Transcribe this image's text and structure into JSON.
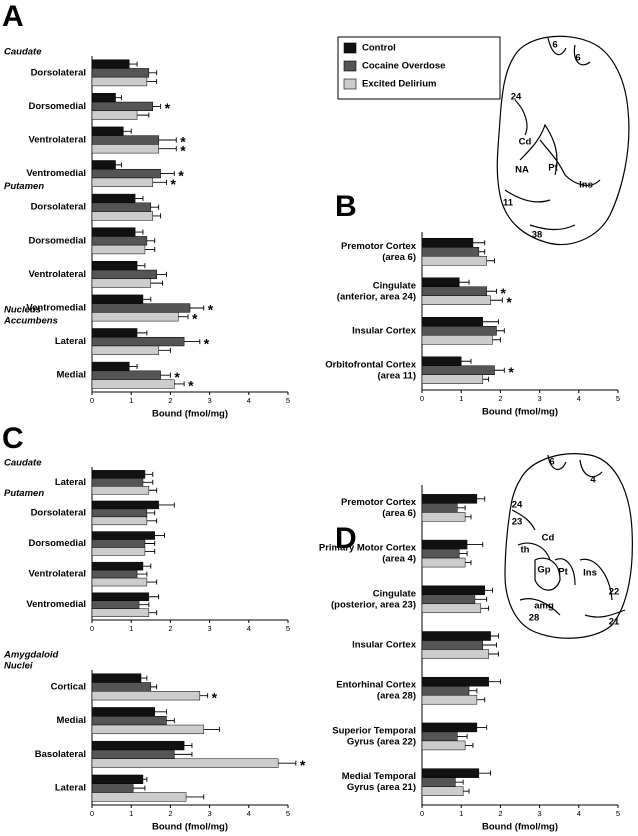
{
  "legend": {
    "title_series_of": 0
  },
  "chart_data": [
    {
      "type": "bar",
      "orientation": "horizontal",
      "panel": "A",
      "xlabel": "Bound (fmol/mg)",
      "xlim": [
        0,
        5
      ],
      "xticks": [
        0,
        1,
        2,
        3,
        4,
        5
      ],
      "groups": [
        {
          "name": [
            "Caudate"
          ],
          "categories": [
            "Dorsolateral",
            "Dorsomedial",
            "Ventrolateral",
            "Ventromedial"
          ]
        },
        {
          "name": [
            "Putamen"
          ],
          "categories": [
            "Dorsolateral",
            "Dorsomedial",
            "Ventrolateral",
            "Ventromedial"
          ]
        },
        {
          "name": [
            "Nucleus",
            "Accumbens"
          ],
          "categories": [
            "Lateral",
            "Medial"
          ]
        }
      ],
      "series": [
        {
          "name": "Control",
          "color": "#111111",
          "values": [
            0.95,
            0.6,
            0.8,
            0.6,
            1.1,
            1.1,
            1.15,
            1.3,
            1.15,
            0.95
          ],
          "errors": [
            0.2,
            0.15,
            0.2,
            0.15,
            0.2,
            0.2,
            0.2,
            0.2,
            0.25,
            0.2
          ],
          "significance": [
            null,
            null,
            null,
            null,
            null,
            null,
            null,
            null,
            null,
            null
          ]
        },
        {
          "name": "Cocaine Overdose",
          "color": "#555555",
          "values": [
            1.45,
            1.55,
            1.7,
            1.75,
            1.5,
            1.4,
            1.65,
            2.5,
            2.35,
            1.75
          ],
          "errors": [
            0.2,
            0.2,
            0.45,
            0.35,
            0.2,
            0.2,
            0.25,
            0.35,
            0.4,
            0.25
          ],
          "significance": [
            null,
            "*",
            "*",
            "*",
            null,
            null,
            null,
            "*",
            "*",
            "*"
          ]
        },
        {
          "name": "Excited Delirium",
          "color": "#cccccc",
          "values": [
            1.4,
            1.15,
            1.7,
            1.55,
            1.55,
            1.35,
            1.5,
            2.2,
            1.7,
            2.1
          ],
          "errors": [
            0.25,
            0.3,
            0.45,
            0.35,
            0.2,
            0.25,
            0.3,
            0.25,
            0.3,
            0.25
          ],
          "significance": [
            null,
            null,
            "*",
            "*",
            null,
            null,
            null,
            "*",
            null,
            "*"
          ]
        }
      ]
    },
    {
      "type": "bar",
      "orientation": "horizontal",
      "panel": "B",
      "xlabel": "Bound (fmol/mg)",
      "xlim": [
        0,
        5
      ],
      "xticks": [
        0,
        1,
        2,
        3,
        4,
        5
      ],
      "categories": [
        [
          "Premotor Cortex",
          "(area 6)"
        ],
        [
          "Cingulate",
          "(anterior, area 24)"
        ],
        [
          "Insular Cortex"
        ],
        [
          "Orbitofrontal Cortex",
          "(area 11)"
        ]
      ],
      "series": [
        {
          "name": "Control",
          "color": "#111111",
          "values": [
            1.3,
            0.95,
            1.55,
            1.0
          ],
          "errors": [
            0.3,
            0.25,
            0.4,
            0.25
          ],
          "significance": [
            null,
            null,
            null,
            null
          ]
        },
        {
          "name": "Cocaine Overdose",
          "color": "#555555",
          "values": [
            1.45,
            1.65,
            1.9,
            1.85
          ],
          "errors": [
            0.15,
            0.25,
            0.2,
            0.25
          ],
          "significance": [
            null,
            "*",
            null,
            "*"
          ]
        },
        {
          "name": "Excited Delirium",
          "color": "#cccccc",
          "values": [
            1.65,
            1.75,
            1.8,
            1.55
          ],
          "errors": [
            0.2,
            0.3,
            0.2,
            0.15
          ],
          "significance": [
            null,
            "*",
            null,
            null
          ]
        }
      ]
    },
    {
      "type": "bar",
      "orientation": "horizontal",
      "panel": "C",
      "xlabel": "Bound (fmol/mg)",
      "xlim": [
        0,
        5
      ],
      "xticks": [
        0,
        1,
        2,
        3,
        4,
        5
      ],
      "groups": [
        {
          "name": [
            "Caudate"
          ],
          "categories": [
            "Lateral"
          ]
        },
        {
          "name": [
            "Putamen"
          ],
          "categories": [
            "Dorsolateral",
            "Dorsomedial",
            "Ventrolateral",
            "Ventromedial"
          ]
        },
        {
          "name": [
            "Amygdaloid",
            "Nuclei"
          ],
          "categories": [
            "Cortical",
            "Medial",
            "Basolateral",
            "Lateral"
          ]
        }
      ],
      "series": [
        {
          "name": "Control",
          "color": "#111111",
          "values": [
            1.35,
            1.7,
            1.6,
            1.3,
            1.45,
            1.25,
            1.6,
            2.35,
            1.3
          ],
          "errors": [
            0.2,
            0.4,
            0.25,
            0.2,
            0.25,
            0.15,
            0.3,
            0.2,
            0.1
          ],
          "significance": [
            null,
            null,
            null,
            null,
            null,
            null,
            null,
            null,
            null
          ]
        },
        {
          "name": "Cocaine Overdose",
          "color": "#555555",
          "values": [
            1.3,
            1.4,
            1.35,
            1.15,
            1.2,
            1.5,
            1.9,
            2.1,
            1.05
          ],
          "errors": [
            0.25,
            0.2,
            0.25,
            0.25,
            0.25,
            0.15,
            0.2,
            0.45,
            0.3
          ],
          "significance": [
            null,
            null,
            null,
            null,
            null,
            null,
            null,
            null,
            null
          ]
        },
        {
          "name": "Excited Delirium",
          "color": "#cccccc",
          "values": [
            1.45,
            1.4,
            1.35,
            1.4,
            1.45,
            2.75,
            2.85,
            4.75,
            2.4
          ],
          "errors": [
            0.2,
            0.25,
            0.25,
            0.25,
            0.2,
            0.2,
            0.4,
            0.45,
            0.45
          ],
          "significance": [
            null,
            null,
            null,
            null,
            null,
            "*",
            null,
            "*",
            null
          ]
        }
      ]
    },
    {
      "type": "bar",
      "orientation": "horizontal",
      "panel": "D",
      "xlabel": "Bound (fmol/mg)",
      "xlim": [
        0,
        5
      ],
      "xticks": [
        0,
        1,
        2,
        3,
        4,
        5
      ],
      "categories": [
        [
          "Premotor Cortex",
          "(area 6)"
        ],
        [
          "Primary Motor Cortex",
          "(area 4)"
        ],
        [
          "Cingulate",
          "(posterior, area 23)"
        ],
        [
          "Insular Cortex"
        ],
        [
          "Entorhinal Cortex",
          "(area 28)"
        ],
        [
          "Superior Temporal",
          "Gyrus (area 22)"
        ],
        [
          "Medial Temporal",
          "Gyrus (area 21)"
        ]
      ],
      "series": [
        {
          "name": "Control",
          "color": "#111111",
          "values": [
            1.4,
            1.15,
            1.6,
            1.75,
            1.7,
            1.4,
            1.45
          ],
          "errors": [
            0.2,
            0.4,
            0.2,
            0.2,
            0.3,
            0.25,
            0.3
          ],
          "significance": [
            null,
            null,
            null,
            null,
            null,
            null,
            null
          ]
        },
        {
          "name": "Cocaine Overdose",
          "color": "#555555",
          "values": [
            0.9,
            0.95,
            1.35,
            1.55,
            1.2,
            0.9,
            0.85
          ],
          "errors": [
            0.2,
            0.2,
            0.3,
            0.35,
            0.2,
            0.25,
            0.2
          ],
          "significance": [
            null,
            null,
            null,
            null,
            null,
            null,
            null
          ]
        },
        {
          "name": "Excited Delirium",
          "color": "#cccccc",
          "values": [
            1.1,
            1.1,
            1.5,
            1.7,
            1.4,
            1.1,
            1.05
          ],
          "errors": [
            0.15,
            0.15,
            0.2,
            0.25,
            0.2,
            0.2,
            0.15
          ],
          "significance": [
            null,
            null,
            null,
            null,
            null,
            null,
            null
          ]
        }
      ]
    }
  ],
  "diagrams": [
    {
      "labels": [
        "6",
        "6",
        "24",
        "Cd",
        "Pt",
        "NA",
        "Ins",
        "11",
        "38"
      ]
    },
    {
      "labels": [
        "6",
        "4",
        "24",
        "23",
        "Cd",
        "th",
        "Gp",
        "Pt",
        "Ins",
        "22",
        "amg",
        "28",
        "21"
      ]
    }
  ]
}
